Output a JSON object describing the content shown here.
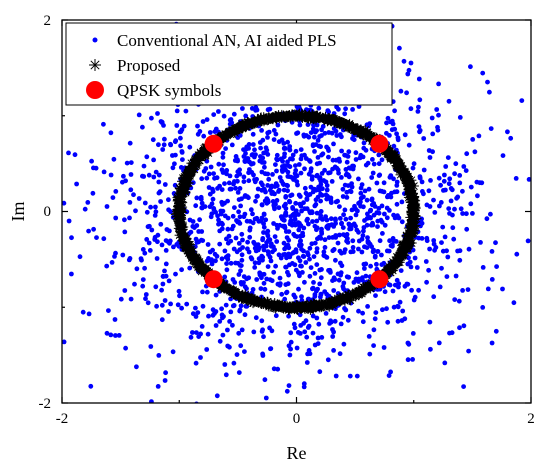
{
  "chart_data": {
    "type": "scatter",
    "title": "",
    "xlabel": "Re",
    "ylabel": "Im",
    "xlim": [
      -2,
      2
    ],
    "ylim": [
      -2,
      2
    ],
    "x_ticks": [
      "-2",
      "0",
      "2"
    ],
    "y_ticks": [
      "2",
      "0",
      "-2"
    ],
    "grid": false,
    "legend_position": "top-left",
    "series": [
      {
        "name": "Conventional AN, AI aided PLS",
        "marker": "dot",
        "color": "#0000ff",
        "distribution": "gaussian",
        "point_count": 1900,
        "std": 0.8,
        "center": [
          0,
          0
        ]
      },
      {
        "name": "Proposed",
        "marker": "asterisk",
        "color": "#000000",
        "distribution": "unit-circle",
        "point_count": 1600,
        "radius": 1.0
      },
      {
        "name": "QPSK symbols",
        "marker": "filled-circle",
        "color": "#ff0000",
        "points": [
          {
            "x": 0.707,
            "y": 0.707
          },
          {
            "x": -0.707,
            "y": 0.707
          },
          {
            "x": -0.707,
            "y": -0.707
          },
          {
            "x": 0.707,
            "y": -0.707
          }
        ]
      }
    ]
  }
}
